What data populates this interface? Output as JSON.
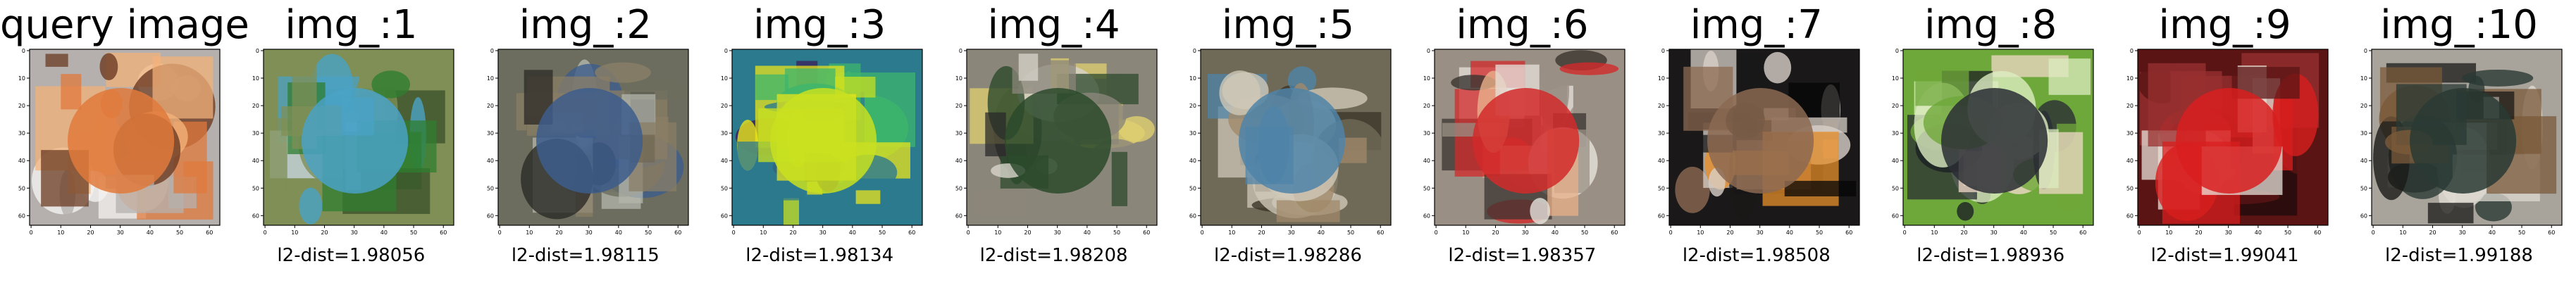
{
  "chart_data": [
    {
      "type": "image",
      "title": "query image",
      "caption": "",
      "xticks": [
        "0",
        "10",
        "20",
        "30",
        "40",
        "50",
        "60"
      ],
      "yticks": [
        "0",
        "10",
        "20",
        "30",
        "40",
        "50",
        "60"
      ],
      "palette": {
        "bg": "#b5b0ad",
        "main": "#e07a3c",
        "accent": "#f3b27a",
        "dark": "#6b3b22",
        "light": "#f4f2f0"
      }
    },
    {
      "type": "image",
      "title": "img_:1",
      "caption": "l2-dist=1.98056",
      "l2_dist": 1.98056,
      "xticks": [
        "0",
        "10",
        "20",
        "30",
        "40",
        "50",
        "60"
      ],
      "yticks": [
        "0",
        "10",
        "20",
        "30",
        "40",
        "50",
        "60"
      ],
      "palette": {
        "bg": "#7f8f56",
        "main": "#4aa2c6",
        "accent": "#2f7d2f",
        "dark": "#3a4f2a",
        "light": "#c9d8e6"
      }
    },
    {
      "type": "image",
      "title": "img_:2",
      "caption": "l2-dist=1.98115",
      "l2_dist": 1.98115,
      "xticks": [
        "0",
        "10",
        "20",
        "30",
        "40",
        "50",
        "60"
      ],
      "yticks": [
        "0",
        "10",
        "20",
        "30",
        "40",
        "50",
        "60"
      ],
      "palette": {
        "bg": "#6c6d5e",
        "main": "#3d5d8c",
        "accent": "#8a7e66",
        "dark": "#2b2a26",
        "light": "#b4b7ad"
      }
    },
    {
      "type": "image",
      "title": "img_:3",
      "caption": "l2-dist=1.98134",
      "l2_dist": 1.98134,
      "xticks": [
        "0",
        "10",
        "20",
        "30",
        "40",
        "50",
        "60"
      ],
      "yticks": [
        "0",
        "10",
        "20",
        "30",
        "40",
        "50",
        "60"
      ],
      "palette": {
        "bg": "#2c7a8e",
        "main": "#c8e020",
        "accent": "#3db66c",
        "dark": "#3b1e5a",
        "light": "#e8e41a"
      }
    },
    {
      "type": "image",
      "title": "img_:4",
      "caption": "l2-dist=1.98208",
      "l2_dist": 1.98208,
      "xticks": [
        "0",
        "10",
        "20",
        "30",
        "40",
        "50",
        "60"
      ],
      "yticks": [
        "0",
        "10",
        "20",
        "30",
        "40",
        "50",
        "60"
      ],
      "palette": {
        "bg": "#8b867a",
        "main": "#2c4a2c",
        "accent": "#e0d070",
        "dark": "#2a2a2a",
        "light": "#d8d4cc"
      }
    },
    {
      "type": "image",
      "title": "img_:5",
      "caption": "l2-dist=1.98286",
      "l2_dist": 1.98286,
      "xticks": [
        "0",
        "10",
        "20",
        "30",
        "40",
        "50",
        "60"
      ],
      "yticks": [
        "0",
        "10",
        "20",
        "30",
        "40",
        "50",
        "60"
      ],
      "palette": {
        "bg": "#6f6a58",
        "main": "#4f84a8",
        "accent": "#a08a6a",
        "dark": "#3a3428",
        "light": "#cfc8b8"
      }
    },
    {
      "type": "image",
      "title": "img_:6",
      "caption": "l2-dist=1.98357",
      "l2_dist": 1.98357,
      "xticks": [
        "0",
        "10",
        "20",
        "30",
        "40",
        "50",
        "60"
      ],
      "yticks": [
        "0",
        "10",
        "20",
        "30",
        "40",
        "50",
        "60"
      ],
      "palette": {
        "bg": "#9a8f84",
        "main": "#d22a2a",
        "accent": "#e8b08a",
        "dark": "#3a3430",
        "light": "#e6e2dc"
      }
    },
    {
      "type": "image",
      "title": "img_:7",
      "caption": "l2-dist=1.98508",
      "l2_dist": 1.98508,
      "xticks": [
        "0",
        "10",
        "20",
        "30",
        "40",
        "50",
        "60"
      ],
      "yticks": [
        "0",
        "10",
        "20",
        "30",
        "40",
        "50",
        "60"
      ],
      "palette": {
        "bg": "#1a1818",
        "main": "#8c6a52",
        "accent": "#e8902c",
        "dark": "#050505",
        "light": "#d8d0c8"
      }
    },
    {
      "type": "image",
      "title": "img_:8",
      "caption": "l2-dist=1.98936",
      "l2_dist": 1.98936,
      "xticks": [
        "0",
        "10",
        "20",
        "30",
        "40",
        "50",
        "60"
      ],
      "yticks": [
        "0",
        "10",
        "20",
        "30",
        "40",
        "50",
        "60"
      ],
      "palette": {
        "bg": "#6fa83a",
        "main": "#2a2e34",
        "accent": "#f0d8c8",
        "dark": "#1c2024",
        "light": "#dcecc0"
      }
    },
    {
      "type": "image",
      "title": "img_:9",
      "caption": "l2-dist=1.99041",
      "l2_dist": 1.99041,
      "xticks": [
        "0",
        "10",
        "20",
        "30",
        "40",
        "50",
        "60"
      ],
      "yticks": [
        "0",
        "10",
        "20",
        "30",
        "40",
        "50",
        "60"
      ],
      "palette": {
        "bg": "#5a1414",
        "main": "#d81e1e",
        "accent": "#e8e0d8",
        "dark": "#1e0a0a",
        "light": "#9a3030"
      }
    },
    {
      "type": "image",
      "title": "img_:10",
      "caption": "l2-dist=1.99188",
      "l2_dist": 1.99188,
      "xticks": [
        "0",
        "10",
        "20",
        "30",
        "40",
        "50",
        "60"
      ],
      "yticks": [
        "0",
        "10",
        "20",
        "30",
        "40",
        "50",
        "60"
      ],
      "palette": {
        "bg": "#a8a49c",
        "main": "#2a3a34",
        "accent": "#7a5a3a",
        "dark": "#1a1a18",
        "light": "#dedad2"
      }
    }
  ]
}
